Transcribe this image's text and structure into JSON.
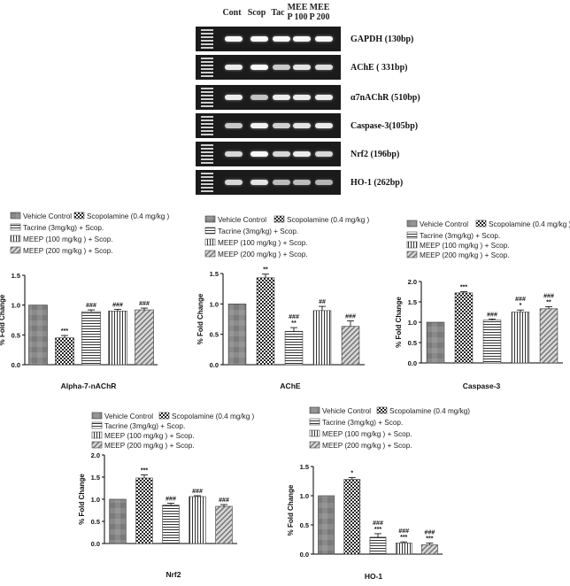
{
  "gel": {
    "lanes": [
      "Cont",
      "Scop",
      "Tac",
      "MEE P 100",
      "MEE P 200"
    ],
    "bands": [
      {
        "label": "GAPDH (130bp)",
        "intensity": [
          0.95,
          0.95,
          0.95,
          0.95,
          0.95
        ]
      },
      {
        "label": "AChE ( 331bp)",
        "intensity": [
          0.85,
          0.95,
          0.6,
          0.8,
          0.75
        ]
      },
      {
        "label": "α7nAChR (510bp)",
        "intensity": [
          0.85,
          0.55,
          0.85,
          0.85,
          0.85
        ]
      },
      {
        "label": "Caspase-3(105bp)",
        "intensity": [
          0.6,
          0.9,
          0.65,
          0.8,
          0.85
        ]
      },
      {
        "label": "Nrf2 (196bp)",
        "intensity": [
          0.7,
          0.95,
          0.7,
          0.85,
          0.7
        ]
      },
      {
        "label": "HO-1 (262bp)",
        "intensity": [
          0.7,
          0.8,
          0.5,
          0.5,
          0.45
        ]
      }
    ]
  },
  "legend": [
    "Vehicle Control",
    "Scopolamine (0.4 mg/kg )",
    "Tacrine (3mg/kg) + Scop.",
    "MEEP (100 mg/kg ) + Scop.",
    "MEEP (200 mg/kg ) + Scop."
  ],
  "legend_hoi": [
    "Vehicle Control",
    "Scopolamine (0.4 mg/kg)",
    "Tacrine (3mg/kg) + Scop.",
    "MEEP (100 mg/kg ) + Scop.",
    "MEEP (200 mg/kg ) + Scop."
  ],
  "chart_data": [
    {
      "type": "bar",
      "title": "Alpha-7-nAChR",
      "ylabel": "% Fold Change",
      "ylim": [
        0,
        1.5
      ],
      "yticks": [
        "0.0",
        "0.5",
        "1.0",
        "1.5"
      ],
      "categories": [
        "Vehicle Control",
        "Scopolamine (0.4 mg/kg )",
        "Tacrine (3mg/kg) + Scop.",
        "MEEP (100 mg/kg ) + Scop.",
        "MEEP (200 mg/kg ) + Scop."
      ],
      "values": [
        1.0,
        0.45,
        0.89,
        0.9,
        0.92
      ],
      "errors": [
        0,
        0.04,
        0.03,
        0.03,
        0.03
      ],
      "annotations": [
        "",
        "***",
        "###",
        "###",
        "###"
      ]
    },
    {
      "type": "bar",
      "title": "AChE",
      "ylabel": "% Fold Change",
      "ylim": [
        0,
        1.5
      ],
      "yticks": [
        "0.0",
        "0.5",
        "1.0",
        "1.5"
      ],
      "categories": [
        "Vehicle Control",
        "Scopolamine (0.4 mg/kg )",
        "Tacrine (3mg/kg) + Scop.",
        "MEEP (100 mg/kg ) + Scop.",
        "MEEP (200 mg/kg ) + Scop."
      ],
      "values": [
        1.0,
        1.43,
        0.55,
        0.89,
        0.63
      ],
      "errors": [
        0,
        0.06,
        0.06,
        0.07,
        0.09
      ],
      "annotations": [
        "",
        "**",
        "###\n**",
        "##",
        "###"
      ]
    },
    {
      "type": "bar",
      "title": "Caspase-3",
      "ylabel": "% Fold Change",
      "ylim": [
        0,
        2.0
      ],
      "yticks": [
        "0.0",
        "0.5",
        "1.0",
        "1.5",
        "2.0"
      ],
      "categories": [
        "Vehicle Control",
        "Scopolamine (0.4 mg/kg )",
        "Tacrine (3mg/kg) + Scop.",
        "MEEP (100 mg/kg ) + Scop.",
        "MEEP (200 mg/kg ) + Scop."
      ],
      "values": [
        1.0,
        1.72,
        1.05,
        1.25,
        1.33
      ],
      "errors": [
        0,
        0.03,
        0.03,
        0.05,
        0.05
      ],
      "annotations": [
        "",
        "***",
        "###",
        "###\n*",
        "###\n**"
      ]
    },
    {
      "type": "bar",
      "title": "Nrf2",
      "ylabel": "% Fold Change",
      "ylim": [
        0,
        2.0
      ],
      "yticks": [
        "0.0",
        "0.5",
        "1.0",
        "1.5",
        "2.0"
      ],
      "categories": [
        "Vehicle Control",
        "Scopolamine (0.4 mg/kg )",
        "Tacrine (3mg/kg) + Scop.",
        "MEEP (100 mg/kg ) + Scop.",
        "MEEP (200 mg/kg ) + Scop."
      ],
      "values": [
        1.0,
        1.48,
        0.87,
        1.06,
        0.84
      ],
      "errors": [
        0,
        0.07,
        0.04,
        0.02,
        0.04
      ],
      "annotations": [
        "",
        "***",
        "###",
        "###",
        "###"
      ]
    },
    {
      "type": "bar",
      "title": "HO-1",
      "ylabel": "% Fold Change",
      "ylim": [
        0,
        1.5
      ],
      "yticks": [
        "0.0",
        "0.5",
        "1.0",
        "1.5"
      ],
      "categories": [
        "Vehicle Control",
        "Scopolamine (0.4 mg/kg)",
        "Tacrine (3mg/kg) + Scop.",
        "MEEP (100 mg/kg ) + Scop.",
        "MEEP (200 mg/kg ) + Scop."
      ],
      "values": [
        1.0,
        1.28,
        0.29,
        0.19,
        0.16
      ],
      "errors": [
        0,
        0.03,
        0.06,
        0.02,
        0.03
      ],
      "annotations": [
        "",
        "*",
        "###\n***",
        "###\n***",
        "###\n***"
      ]
    }
  ]
}
